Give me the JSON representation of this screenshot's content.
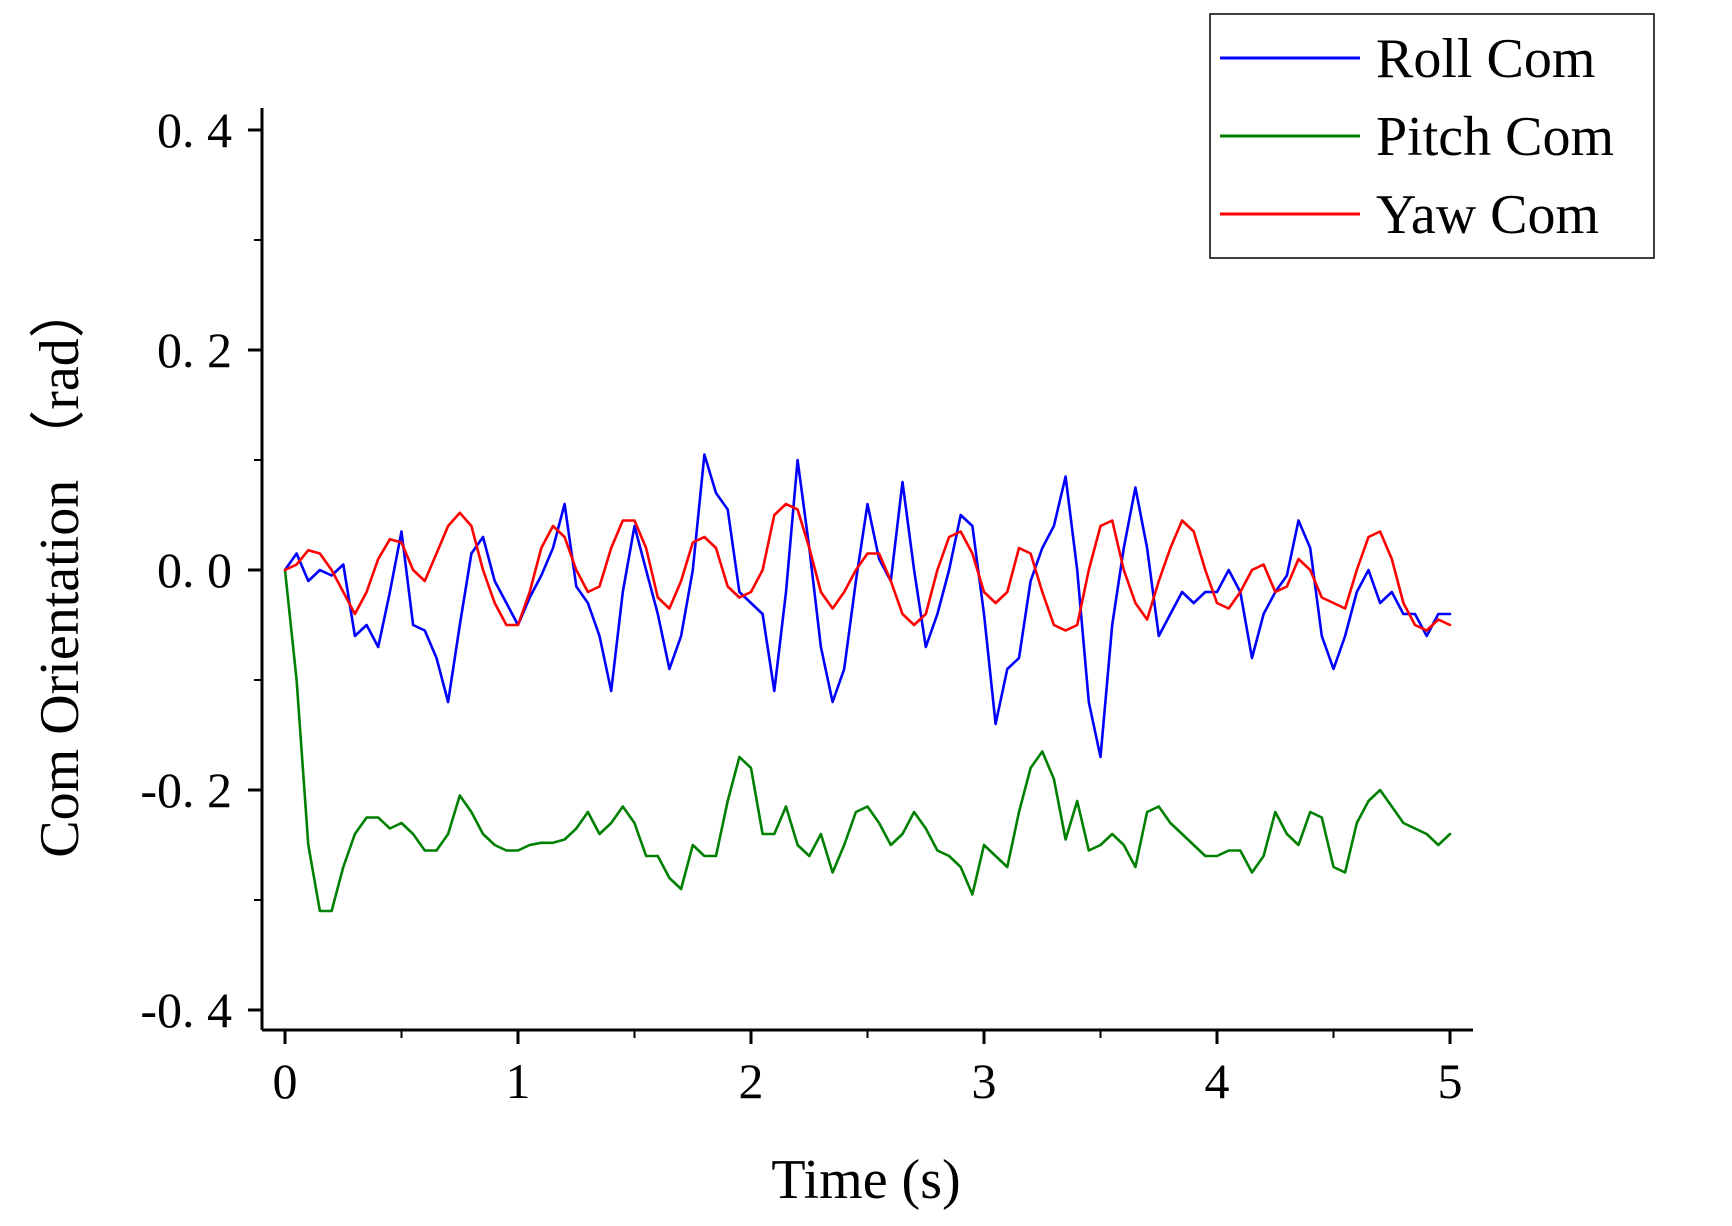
{
  "chart_data": {
    "type": "line",
    "title": "",
    "xlabel": "Time (s)",
    "ylabel": "Com Orientation （rad）",
    "xlim": [
      0,
      5
    ],
    "ylim": [
      -0.4,
      0.4
    ],
    "x_ticks": [
      0,
      1,
      2,
      3,
      4,
      5
    ],
    "x_tick_labels": [
      "0",
      "1",
      "2",
      "3",
      "4",
      "5"
    ],
    "y_ticks": [
      0.4,
      0.2,
      0.0,
      -0.2,
      -0.4
    ],
    "y_tick_labels": [
      "0. 4",
      "0. 2",
      "0. 0",
      "-0. 2",
      "-0. 4"
    ],
    "grid": false,
    "legend_position": "top-right",
    "series": [
      {
        "name": "Roll Com",
        "color": "#0000ff",
        "x": [
          0,
          0.05,
          0.1,
          0.15,
          0.2,
          0.25,
          0.3,
          0.35,
          0.4,
          0.45,
          0.5,
          0.55,
          0.6,
          0.65,
          0.7,
          0.75,
          0.8,
          0.85,
          0.9,
          0.95,
          1.0,
          1.05,
          1.1,
          1.15,
          1.2,
          1.25,
          1.3,
          1.35,
          1.4,
          1.45,
          1.5,
          1.55,
          1.6,
          1.65,
          1.7,
          1.75,
          1.8,
          1.85,
          1.9,
          1.95,
          2.0,
          2.05,
          2.1,
          2.15,
          2.2,
          2.25,
          2.3,
          2.35,
          2.4,
          2.45,
          2.5,
          2.55,
          2.6,
          2.65,
          2.7,
          2.75,
          2.8,
          2.85,
          2.9,
          2.95,
          3.0,
          3.05,
          3.1,
          3.15,
          3.2,
          3.25,
          3.3,
          3.35,
          3.4,
          3.45,
          3.5,
          3.55,
          3.6,
          3.65,
          3.7,
          3.75,
          3.8,
          3.85,
          3.9,
          3.95,
          4.0,
          4.05,
          4.1,
          4.15,
          4.2,
          4.25,
          4.3,
          4.35,
          4.4,
          4.45,
          4.5,
          4.55,
          4.6,
          4.65,
          4.7,
          4.75,
          4.8,
          4.85,
          4.9,
          4.95,
          5.0
        ],
        "y": [
          0,
          0.015,
          -0.01,
          0.0,
          -0.005,
          0.005,
          -0.06,
          -0.05,
          -0.07,
          -0.02,
          0.035,
          -0.05,
          -0.055,
          -0.08,
          -0.12,
          -0.05,
          0.015,
          0.03,
          -0.01,
          -0.03,
          -0.05,
          -0.025,
          -0.005,
          0.02,
          0.06,
          -0.015,
          -0.03,
          -0.06,
          -0.11,
          -0.02,
          0.04,
          0.0,
          -0.04,
          -0.09,
          -0.06,
          0.0,
          0.105,
          0.07,
          0.055,
          -0.02,
          -0.03,
          -0.04,
          -0.11,
          -0.02,
          0.1,
          0.02,
          -0.07,
          -0.12,
          -0.09,
          -0.01,
          0.06,
          0.01,
          -0.01,
          0.08,
          0.0,
          -0.07,
          -0.04,
          0.0,
          0.05,
          0.04,
          -0.04,
          -0.14,
          -0.09,
          -0.08,
          -0.01,
          0.02,
          0.04,
          0.085,
          0.0,
          -0.12,
          -0.17,
          -0.05,
          0.02,
          0.075,
          0.02,
          -0.06,
          -0.04,
          -0.02,
          -0.03,
          -0.02,
          -0.02,
          0.0,
          -0.02,
          -0.08,
          -0.04,
          -0.02,
          -0.005,
          0.045,
          0.02,
          -0.06,
          -0.09,
          -0.06,
          -0.02,
          0.0,
          -0.03,
          -0.02,
          -0.04,
          -0.04,
          -0.06,
          -0.04,
          -0.04
        ]
      },
      {
        "name": "Pitch Com",
        "color": "#008000",
        "x": [
          0,
          0.05,
          0.1,
          0.15,
          0.2,
          0.25,
          0.3,
          0.35,
          0.4,
          0.45,
          0.5,
          0.55,
          0.6,
          0.65,
          0.7,
          0.75,
          0.8,
          0.85,
          0.9,
          0.95,
          1.0,
          1.05,
          1.1,
          1.15,
          1.2,
          1.25,
          1.3,
          1.35,
          1.4,
          1.45,
          1.5,
          1.55,
          1.6,
          1.65,
          1.7,
          1.75,
          1.8,
          1.85,
          1.9,
          1.95,
          2.0,
          2.05,
          2.1,
          2.15,
          2.2,
          2.25,
          2.3,
          2.35,
          2.4,
          2.45,
          2.5,
          2.55,
          2.6,
          2.65,
          2.7,
          2.75,
          2.8,
          2.85,
          2.9,
          2.95,
          3.0,
          3.05,
          3.1,
          3.15,
          3.2,
          3.25,
          3.3,
          3.35,
          3.4,
          3.45,
          3.5,
          3.55,
          3.6,
          3.65,
          3.7,
          3.75,
          3.8,
          3.85,
          3.9,
          3.95,
          4.0,
          4.05,
          4.1,
          4.15,
          4.2,
          4.25,
          4.3,
          4.35,
          4.4,
          4.45,
          4.5,
          4.55,
          4.6,
          4.65,
          4.7,
          4.75,
          4.8,
          4.85,
          4.9,
          4.95,
          5.0
        ],
        "y": [
          0,
          -0.1,
          -0.25,
          -0.31,
          -0.31,
          -0.27,
          -0.24,
          -0.225,
          -0.225,
          -0.235,
          -0.23,
          -0.24,
          -0.255,
          -0.255,
          -0.24,
          -0.205,
          -0.22,
          -0.24,
          -0.25,
          -0.255,
          -0.255,
          -0.25,
          -0.248,
          -0.248,
          -0.245,
          -0.235,
          -0.22,
          -0.24,
          -0.23,
          -0.215,
          -0.23,
          -0.26,
          -0.26,
          -0.28,
          -0.29,
          -0.25,
          -0.26,
          -0.26,
          -0.21,
          -0.17,
          -0.18,
          -0.24,
          -0.24,
          -0.215,
          -0.25,
          -0.26,
          -0.24,
          -0.275,
          -0.25,
          -0.22,
          -0.215,
          -0.23,
          -0.25,
          -0.24,
          -0.22,
          -0.235,
          -0.255,
          -0.26,
          -0.27,
          -0.295,
          -0.25,
          -0.26,
          -0.27,
          -0.22,
          -0.18,
          -0.165,
          -0.19,
          -0.245,
          -0.21,
          -0.255,
          -0.25,
          -0.24,
          -0.25,
          -0.27,
          -0.22,
          -0.215,
          -0.23,
          -0.24,
          -0.25,
          -0.26,
          -0.26,
          -0.255,
          -0.255,
          -0.275,
          -0.26,
          -0.22,
          -0.24,
          -0.25,
          -0.22,
          -0.225,
          -0.27,
          -0.275,
          -0.23,
          -0.21,
          -0.2,
          -0.215,
          -0.23,
          -0.235,
          -0.24,
          -0.25,
          -0.24
        ]
      },
      {
        "name": "Yaw Com",
        "color": "#ff0000",
        "x": [
          0,
          0.05,
          0.1,
          0.15,
          0.2,
          0.25,
          0.3,
          0.35,
          0.4,
          0.45,
          0.5,
          0.55,
          0.6,
          0.65,
          0.7,
          0.75,
          0.8,
          0.85,
          0.9,
          0.95,
          1.0,
          1.05,
          1.1,
          1.15,
          1.2,
          1.25,
          1.3,
          1.35,
          1.4,
          1.45,
          1.5,
          1.55,
          1.6,
          1.65,
          1.7,
          1.75,
          1.8,
          1.85,
          1.9,
          1.95,
          2.0,
          2.05,
          2.1,
          2.15,
          2.2,
          2.25,
          2.3,
          2.35,
          2.4,
          2.45,
          2.5,
          2.55,
          2.6,
          2.65,
          2.7,
          2.75,
          2.8,
          2.85,
          2.9,
          2.95,
          3.0,
          3.05,
          3.1,
          3.15,
          3.2,
          3.25,
          3.3,
          3.35,
          3.4,
          3.45,
          3.5,
          3.55,
          3.6,
          3.65,
          3.7,
          3.75,
          3.8,
          3.85,
          3.9,
          3.95,
          4.0,
          4.05,
          4.1,
          4.15,
          4.2,
          4.25,
          4.3,
          4.35,
          4.4,
          4.45,
          4.5,
          4.55,
          4.6,
          4.65,
          4.7,
          4.75,
          4.8,
          4.85,
          4.9,
          4.95,
          5.0
        ],
        "y": [
          0,
          0.005,
          0.018,
          0.015,
          0.0,
          -0.02,
          -0.04,
          -0.02,
          0.01,
          0.028,
          0.025,
          0.0,
          -0.01,
          0.015,
          0.04,
          0.052,
          0.04,
          0.0,
          -0.03,
          -0.05,
          -0.05,
          -0.02,
          0.02,
          0.04,
          0.03,
          0.0,
          -0.02,
          -0.015,
          0.02,
          0.045,
          0.045,
          0.02,
          -0.025,
          -0.035,
          -0.01,
          0.025,
          0.03,
          0.02,
          -0.015,
          -0.025,
          -0.02,
          0.0,
          0.05,
          0.06,
          0.055,
          0.02,
          -0.02,
          -0.035,
          -0.02,
          0.0,
          0.015,
          0.015,
          -0.01,
          -0.04,
          -0.05,
          -0.04,
          0.0,
          0.03,
          0.035,
          0.015,
          -0.02,
          -0.03,
          -0.02,
          0.02,
          0.015,
          -0.02,
          -0.05,
          -0.055,
          -0.05,
          0.0,
          0.04,
          0.045,
          0.0,
          -0.03,
          -0.045,
          -0.01,
          0.02,
          0.045,
          0.035,
          0.0,
          -0.03,
          -0.035,
          -0.02,
          0.0,
          0.005,
          -0.02,
          -0.015,
          0.01,
          0.0,
          -0.025,
          -0.03,
          -0.035,
          0.0,
          0.03,
          0.035,
          0.01,
          -0.03,
          -0.05,
          -0.055,
          -0.045,
          -0.05
        ]
      }
    ]
  }
}
